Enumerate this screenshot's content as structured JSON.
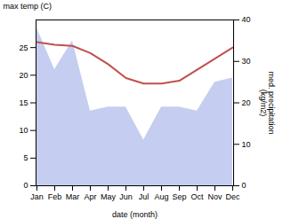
{
  "chart_data": {
    "type": "line",
    "xlabel": "date (month)",
    "ylabel": "max temp (C)",
    "y2label": "med. precipitation\n(kg/m2)",
    "categories": [
      "Jan",
      "Feb",
      "Mar",
      "Apr",
      "May",
      "Jun",
      "Jul",
      "Aug",
      "Sep",
      "Oct",
      "Nov",
      "Dec"
    ],
    "series": [
      {
        "type": "area",
        "axis": "y2",
        "color": "#c5cef0",
        "values": [
          38.0,
          28.0,
          35.0,
          18.0,
          19.0,
          19.0,
          11.0,
          19.0,
          19.0,
          18.0,
          25.0,
          26.0
        ]
      },
      {
        "type": "line",
        "color": "#c0504d",
        "values": [
          26.0,
          25.5,
          25.3,
          24.0,
          22.0,
          19.5,
          18.5,
          18.5,
          19.0,
          21.0,
          23.0,
          25.0
        ]
      }
    ],
    "ylim": [
      0,
      30
    ],
    "yticks": [
      0,
      5,
      10,
      15,
      20,
      25
    ],
    "y2lim": [
      0,
      40
    ],
    "y2ticks": [
      0,
      10,
      20,
      30,
      40
    ],
    "grid": false
  }
}
